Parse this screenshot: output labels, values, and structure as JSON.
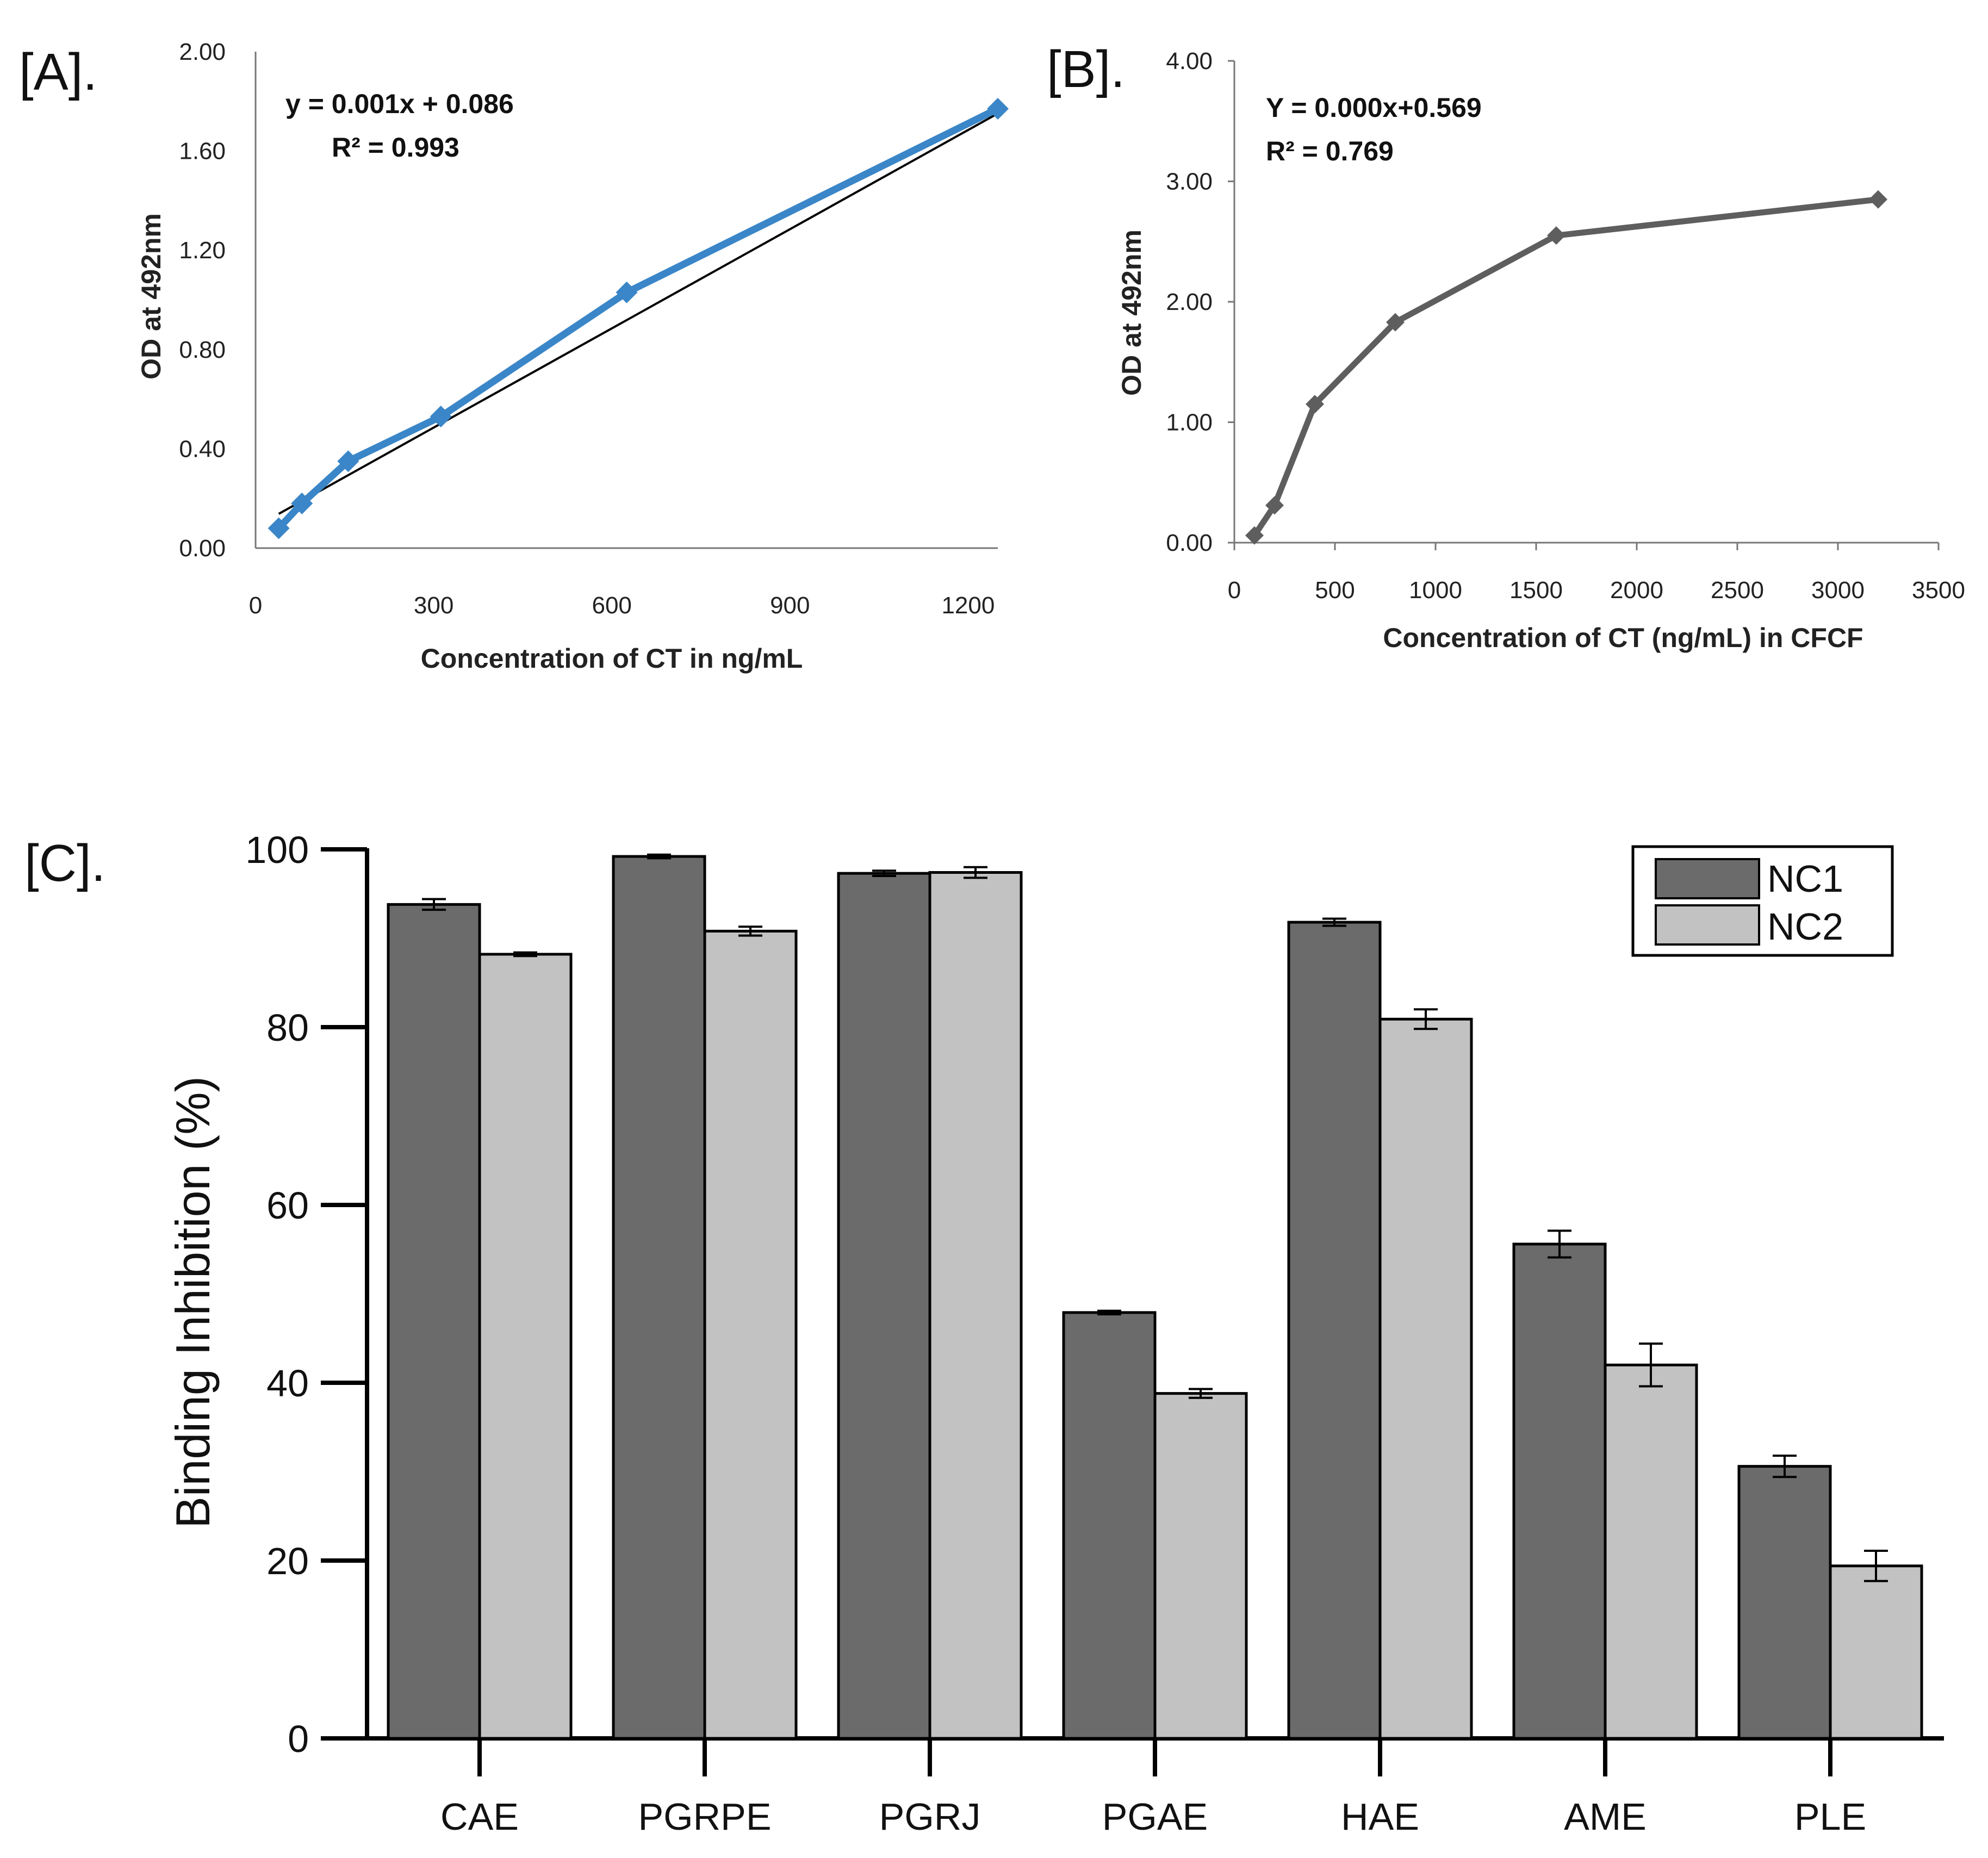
{
  "chart_data": [
    {
      "panel": "[A].",
      "type": "line",
      "xlabel": "Concentration of CT in ng/mL",
      "ylabel": "OD  at 492nm",
      "xlim": [
        0,
        1250
      ],
      "ylim": [
        0,
        2.0
      ],
      "xticks": [
        "0",
        "300",
        "600",
        "900",
        "1200"
      ],
      "yticks": [
        "0.00",
        "0.40",
        "0.80",
        "1.20",
        "1.60",
        "2.00"
      ],
      "x": [
        39,
        78,
        156,
        312,
        625,
        1250
      ],
      "y": [
        0.08,
        0.18,
        0.35,
        0.53,
        1.03,
        1.77
      ],
      "equation": "y = 0.001x + 0.086",
      "r2": "R² = 0.993",
      "series_color": "#3a86c8",
      "trend": {
        "slope": 0.001332,
        "intercept": 0.086,
        "x_range": [
          39,
          1250
        ]
      }
    },
    {
      "panel": "[B].",
      "type": "line",
      "xlabel": "Concentration of CT (ng/mL) in CFCF",
      "ylabel": "OD at 492nm",
      "xlim": [
        0,
        3500
      ],
      "ylim": [
        0,
        4.0
      ],
      "xticks": [
        "0",
        "500",
        "1000",
        "1500",
        "2000",
        "2500",
        "3000",
        "3500"
      ],
      "yticks": [
        "0.00",
        "1.00",
        "2.00",
        "3.00",
        "4.00"
      ],
      "x": [
        100,
        200,
        400,
        800,
        1600,
        3200
      ],
      "y": [
        0.06,
        0.31,
        1.15,
        1.83,
        2.55,
        2.85
      ],
      "equation": "Y = 0.000x+0.569",
      "r2": "R² = 0.769",
      "series_color": "#5e5e5e"
    },
    {
      "panel": "[C].",
      "type": "bar",
      "ylabel": "Binding Inhibition (%)",
      "ylim": [
        0,
        100
      ],
      "yticks": [
        "0",
        "20",
        "40",
        "60",
        "80",
        "100"
      ],
      "categories": [
        "CAE",
        "PGRPE",
        "PGRJ",
        "PGAE",
        "HAE",
        "AME",
        "PLE"
      ],
      "series": [
        {
          "name": "NC1",
          "color": "#6b6b6b",
          "values": [
            93.8,
            99.2,
            97.3,
            47.9,
            91.8,
            55.6,
            30.6
          ],
          "errors": [
            0.6,
            0.2,
            0.3,
            0.2,
            0.4,
            1.5,
            1.2
          ]
        },
        {
          "name": "NC2",
          "color": "#c2c2c2",
          "values": [
            88.2,
            90.8,
            97.4,
            38.8,
            80.9,
            42.0,
            19.4
          ],
          "errors": [
            0.2,
            0.5,
            0.6,
            0.5,
            1.1,
            2.4,
            1.7
          ]
        }
      ],
      "legend": [
        "NC1",
        "NC2"
      ]
    }
  ]
}
